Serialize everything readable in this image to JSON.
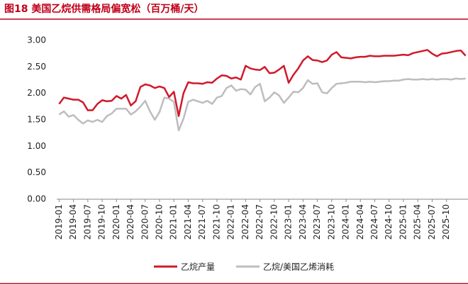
{
  "chart_data": {
    "type": "line",
    "title": "图18  美国乙烷供需格局偏宽松（百万桶/天）",
    "categories": [
      "2019-01",
      null,
      null,
      "2019-04",
      null,
      null,
      "2019-07",
      null,
      null,
      "2019-10",
      null,
      null,
      "2020-01",
      null,
      null,
      "2020-04",
      null,
      null,
      "2020-07",
      null,
      null,
      "2020-10",
      null,
      null,
      "2021-01",
      null,
      null,
      "2021-04",
      null,
      null,
      "2021-07",
      null,
      null,
      "2021-10",
      null,
      null,
      "2022-01",
      null,
      null,
      "2022-04",
      null,
      null,
      "2022-07",
      null,
      null,
      "2022-10",
      null,
      null,
      "2023-01",
      null,
      null,
      "2023-04",
      null,
      null,
      "2023-07",
      null,
      null,
      "2023-10",
      null,
      null,
      "2024-01",
      null,
      null,
      "2024-04",
      null,
      null,
      "2024-07",
      null,
      null,
      "2024-10",
      null,
      null,
      "2025-01",
      null,
      null,
      "2025-04",
      null,
      null,
      "2025-07",
      null,
      null,
      "2025-10",
      null,
      null,
      null,
      null
    ],
    "series": [
      {
        "name": "乙烷产量",
        "color": "#d0192b",
        "values": [
          1.8,
          1.92,
          1.9,
          1.88,
          1.88,
          1.83,
          1.68,
          1.68,
          1.8,
          1.87,
          1.85,
          1.86,
          1.95,
          1.9,
          1.97,
          1.77,
          1.85,
          2.12,
          2.17,
          2.15,
          2.1,
          2.13,
          2.1,
          1.93,
          2.03,
          1.57,
          2.0,
          2.21,
          2.19,
          2.19,
          2.18,
          2.21,
          2.2,
          2.28,
          2.34,
          2.33,
          2.28,
          2.3,
          2.26,
          2.52,
          2.47,
          2.45,
          2.44,
          2.5,
          2.38,
          2.39,
          2.45,
          2.52,
          2.2,
          2.35,
          2.47,
          2.62,
          2.7,
          2.63,
          2.62,
          2.59,
          2.62,
          2.73,
          2.78,
          2.68,
          2.67,
          2.66,
          2.68,
          2.69,
          2.69,
          2.71,
          2.7,
          2.7,
          2.71,
          2.71,
          2.71,
          2.72,
          2.73,
          2.72,
          2.76,
          2.78,
          2.8,
          2.82,
          2.75,
          2.7,
          2.75,
          2.76,
          2.78,
          2.8,
          2.81,
          2.71
        ]
      },
      {
        "name": "乙烷/美国乙烯消耗",
        "color": "#bdbdbd",
        "values": [
          1.6,
          1.66,
          1.56,
          1.59,
          1.5,
          1.43,
          1.49,
          1.46,
          1.5,
          1.46,
          1.57,
          1.62,
          1.71,
          1.71,
          1.71,
          1.6,
          1.66,
          1.75,
          1.86,
          1.66,
          1.5,
          1.65,
          1.92,
          1.9,
          1.84,
          1.3,
          1.52,
          1.84,
          1.88,
          1.85,
          1.82,
          1.86,
          1.8,
          1.92,
          1.95,
          2.1,
          2.15,
          2.05,
          2.08,
          2.07,
          1.98,
          2.12,
          2.18,
          1.85,
          1.92,
          2.02,
          1.96,
          1.82,
          1.92,
          2.03,
          2.02,
          2.1,
          2.25,
          2.18,
          2.19,
          2.02,
          2.0,
          2.1,
          2.18,
          2.19,
          2.2,
          2.22,
          2.22,
          2.22,
          2.21,
          2.22,
          2.21,
          2.22,
          2.23,
          2.23,
          2.24,
          2.24,
          2.26,
          2.27,
          2.26,
          2.26,
          2.27,
          2.26,
          2.27,
          2.26,
          2.27,
          2.27,
          2.26,
          2.28,
          2.27,
          2.28
        ]
      }
    ],
    "ylim": [
      0,
      3
    ],
    "yticks": [
      {
        "value": 0,
        "label": "0.00"
      },
      {
        "value": 0.5,
        "label": "0.50"
      },
      {
        "value": 1,
        "label": "1.00"
      },
      {
        "value": 1.5,
        "label": "1.50"
      },
      {
        "value": 2,
        "label": "2.00"
      },
      {
        "value": 2.5,
        "label": "2.50"
      },
      {
        "value": 3,
        "label": "3.00"
      }
    ],
    "grid": false,
    "legend": "bottom"
  }
}
